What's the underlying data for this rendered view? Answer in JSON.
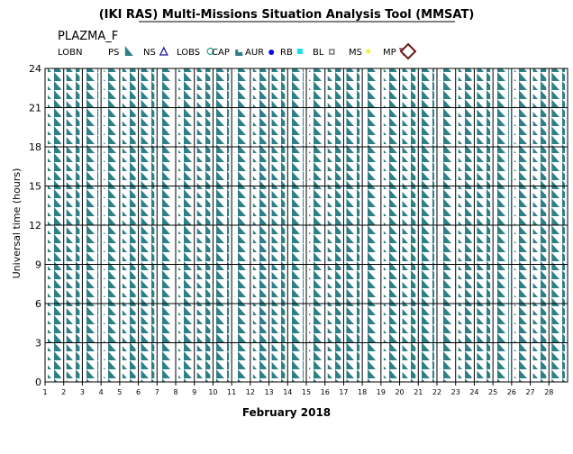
{
  "header": {
    "title": "(IKI RAS) Multi-Missions Situation Analysis Tool (MMSAT)",
    "instrument": "PLAZMA_F"
  },
  "legend": [
    {
      "label": "LOBN",
      "symbol": "none"
    },
    {
      "label": "PS",
      "symbol": "sawtooth"
    },
    {
      "label": "NS",
      "symbol": "triangle"
    },
    {
      "label": "LOBS",
      "symbol": "circle"
    },
    {
      "label": "CAP",
      "symbol": "step"
    },
    {
      "label": "AUR",
      "symbol": "dot"
    },
    {
      "label": "RB",
      "symbol": "square"
    },
    {
      "label": "BL",
      "symbol": "small-square"
    },
    {
      "label": "MS",
      "symbol": "small-dot"
    },
    {
      "label": "MP",
      "symbol": "down-triangle"
    },
    {
      "label": "",
      "symbol": "diamond"
    }
  ],
  "colors": {
    "PS": "#2f7f86",
    "NS": "#1a1aa0",
    "LOBS": "#25a39b",
    "CAP": "#2f7f86",
    "AUR": "#0a0ae6",
    "RB": "#16e0e8",
    "BL": "#7a7a7a",
    "MS": "#f2f238",
    "MP": "#8a2d4c",
    "diamond_fill": "#f2f238",
    "diamond_stroke": "#6b1a1a"
  },
  "chart_data": {
    "type": "event-timeline",
    "xlabel": "February 2018",
    "ylabel": "Universal time (hours)",
    "ylim": [
      0,
      24
    ],
    "yticks": [
      0,
      3,
      6,
      9,
      12,
      15,
      18,
      21,
      24
    ],
    "x_days": [
      1,
      2,
      3,
      4,
      5,
      6,
      7,
      8,
      9,
      10,
      11,
      12,
      13,
      14,
      15,
      16,
      17,
      18,
      19,
      20,
      21,
      22,
      23,
      24,
      25,
      26,
      27,
      28
    ],
    "tracks": [
      {
        "day": 1,
        "events": [
          {
            "type": "PS",
            "start": 0,
            "end": 24
          }
        ]
      },
      {
        "day": 2,
        "events": [
          {
            "type": "PS",
            "start": 0,
            "end": 24
          }
        ]
      },
      {
        "day": 3,
        "events": [
          {
            "type": "PS",
            "start": 0,
            "end": 24
          }
        ]
      },
      {
        "day": 4,
        "events": [
          {
            "type": "PS",
            "start": 0,
            "end": 24
          }
        ]
      },
      {
        "day": 5,
        "events": [
          {
            "type": "PS",
            "start": 0,
            "end": 24
          }
        ]
      },
      {
        "day": 6,
        "events": [
          {
            "type": "PS",
            "start": 0,
            "end": 24
          }
        ]
      },
      {
        "day": 7,
        "events": [
          {
            "type": "PS",
            "start": 0,
            "end": 24
          }
        ]
      },
      {
        "day": 8,
        "events": [
          {
            "type": "PS",
            "start": 0,
            "end": 24
          }
        ]
      },
      {
        "day": 9,
        "events": [
          {
            "type": "PS",
            "start": 0,
            "end": 24
          }
        ]
      },
      {
        "day": 10,
        "events": [
          {
            "type": "PS",
            "start": 0,
            "end": 24
          }
        ]
      },
      {
        "day": 11,
        "events": [
          {
            "type": "PS",
            "start": 0,
            "end": 24
          }
        ]
      },
      {
        "day": 12,
        "events": [
          {
            "type": "PS",
            "start": 0,
            "end": 24
          }
        ]
      },
      {
        "day": 13,
        "events": [
          {
            "type": "PS",
            "start": 0,
            "end": 24
          }
        ]
      },
      {
        "day": 14,
        "events": [
          {
            "type": "PS",
            "start": 0,
            "end": 24
          }
        ]
      },
      {
        "day": 15,
        "events": [
          {
            "type": "PS",
            "start": 0,
            "end": 24
          }
        ]
      },
      {
        "day": 16,
        "events": [
          {
            "type": "PS",
            "start": 0,
            "end": 24
          }
        ]
      },
      {
        "day": 17,
        "events": [
          {
            "type": "PS",
            "start": 0,
            "end": 24
          }
        ]
      },
      {
        "day": 18,
        "events": [
          {
            "type": "PS",
            "start": 0,
            "end": 24
          }
        ]
      },
      {
        "day": 19,
        "events": [
          {
            "type": "PS",
            "start": 0,
            "end": 24
          }
        ]
      },
      {
        "day": 20,
        "events": [
          {
            "type": "PS",
            "start": 0,
            "end": 24
          }
        ]
      },
      {
        "day": 21,
        "events": [
          {
            "type": "PS",
            "start": 0,
            "end": 24
          }
        ]
      },
      {
        "day": 22,
        "events": [
          {
            "type": "PS",
            "start": 0,
            "end": 24
          }
        ]
      },
      {
        "day": 23,
        "events": [
          {
            "type": "PS",
            "start": 0,
            "end": 24
          }
        ]
      },
      {
        "day": 24,
        "events": [
          {
            "type": "PS",
            "start": 0,
            "end": 24
          }
        ]
      },
      {
        "day": 25,
        "events": [
          {
            "type": "PS",
            "start": 0,
            "end": 24
          }
        ]
      },
      {
        "day": 26,
        "events": [
          {
            "type": "PS",
            "start": 0,
            "end": 24
          }
        ]
      },
      {
        "day": 27,
        "events": [
          {
            "type": "PS",
            "start": 0,
            "end": 24
          }
        ]
      },
      {
        "day": 28,
        "events": [
          {
            "type": "PS",
            "start": 0,
            "end": 24
          }
        ]
      }
    ]
  }
}
